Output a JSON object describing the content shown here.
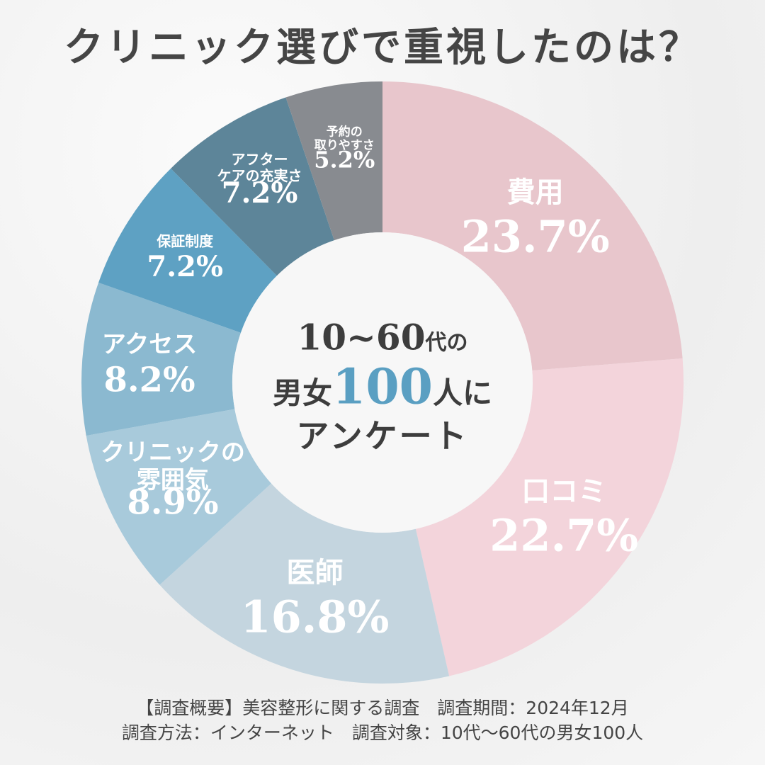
{
  "title": "クリニック選びで重視したのは？",
  "chart_data": {
    "type": "donut",
    "categories": [
      "費用",
      "口コミ",
      "医師",
      "クリニックの\n雰囲気",
      "アクセス",
      "保証制度",
      "アフター\nケアの充実さ",
      "予約の\n取りやすさ"
    ],
    "values": [
      23.7,
      22.7,
      16.8,
      8.9,
      8.2,
      7.2,
      7.2,
      5.2
    ],
    "value_labels": [
      "23.7%",
      "22.7%",
      "16.8%",
      "8.9%",
      "8.2%",
      "7.2%",
      "7.2%",
      "5.2%"
    ],
    "colors": [
      "#e8c6cc",
      "#f3d4db",
      "#c4d5df",
      "#a8cadb",
      "#8bb9d0",
      "#5ea1c3",
      "#5d8599",
      "#888b90"
    ],
    "center_label": [
      "10~60",
      "代の",
      "男女",
      "100",
      "人に",
      "アンケート"
    ]
  },
  "footer": [
    "【調査概要】美容整形に関する調査　調査期間：2024年12月",
    "調査方法：インターネット　調査対象：10代～60代の男女100人"
  ]
}
